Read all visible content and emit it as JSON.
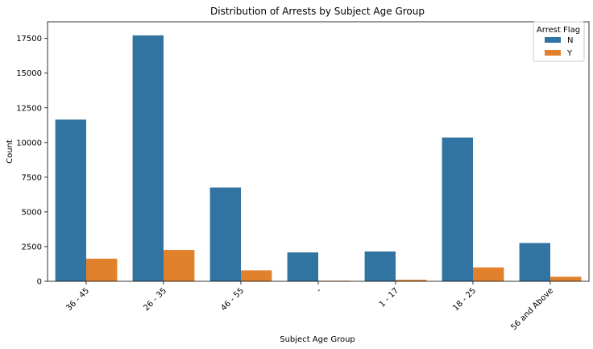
{
  "chart_data": {
    "type": "bar",
    "title": "Distribution of Arrests by Subject Age Group",
    "xlabel": "Subject Age Group",
    "ylabel": "Count",
    "categories": [
      "36 - 45",
      "26 - 35",
      "46 - 55",
      "-",
      "1 - 17",
      "18 - 25",
      "56 and Above"
    ],
    "series": [
      {
        "name": "N",
        "color": "#3274a1",
        "values": [
          11650,
          17720,
          6760,
          2080,
          2150,
          10360,
          2760
        ]
      },
      {
        "name": "Y",
        "color": "#e1812c",
        "values": [
          1630,
          2260,
          790,
          40,
          110,
          1000,
          330
        ]
      }
    ],
    "ylim": [
      0,
      18700
    ],
    "yticks": [
      0,
      2500,
      5000,
      7500,
      10000,
      12500,
      15000,
      17500
    ],
    "ytick_labels": [
      "0",
      "2500",
      "5000",
      "7500",
      "10000",
      "12500",
      "15000",
      "17500"
    ],
    "legend": {
      "title": "Arrest Flag",
      "position": "top-right"
    },
    "grid": false
  }
}
